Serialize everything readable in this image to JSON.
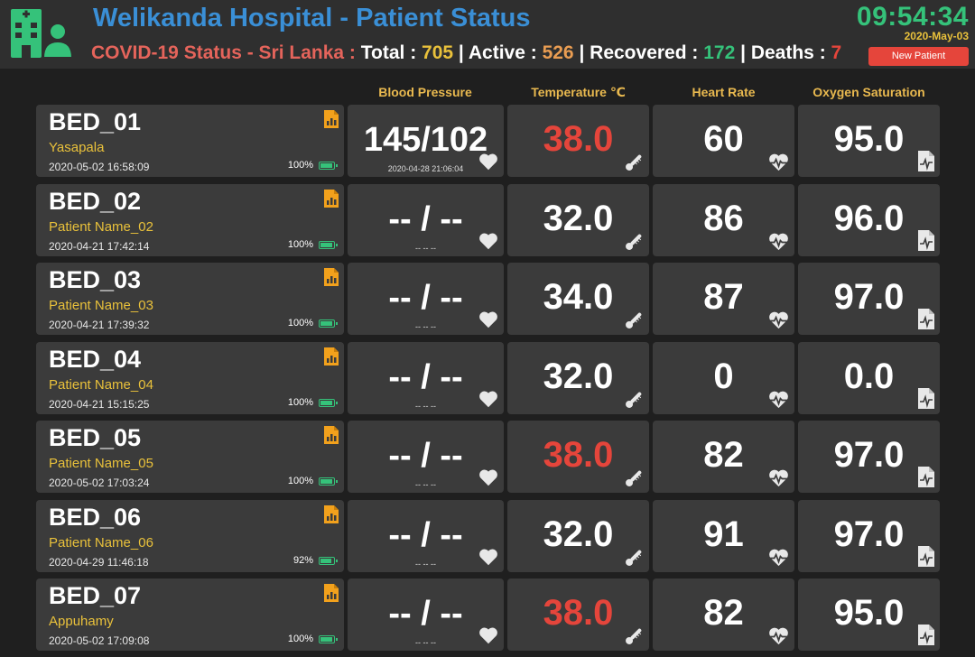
{
  "header": {
    "title": "Welikanda Hospital - Patient Status",
    "covid_label": "COVID-19 Status - Sri Lanka :",
    "total_label": "Total :",
    "total_value": "705",
    "active_label": "| Active :",
    "active_value": "526",
    "recovered_label": "| Recovered :",
    "recovered_value": "172",
    "deaths_label": "| Deaths :",
    "deaths_value": "7",
    "clock": "09:54:34",
    "date": "2020-May-03",
    "new_patient_label": "New Patient"
  },
  "columns": {
    "blood_pressure": "Blood Pressure",
    "temperature": "Temperature ℃",
    "heart_rate": "Heart Rate",
    "oxygen": "Oxygen Saturation"
  },
  "colors": {
    "accent_blue": "#3a8fd6",
    "covid_red": "#e5645b",
    "alert_red": "#e5453b",
    "green": "#35c27a",
    "yellow": "#e9c13b",
    "card_bg": "#3b3b3b"
  },
  "beds": [
    {
      "bed": "BED_01",
      "patient": "Yasapala",
      "time": "2020-05-02 16:58:09",
      "battery": "100%",
      "battery_level": 1.0,
      "bp": "145/102",
      "bp_time": "2020-04-28 21:06:04",
      "temp": "38.0",
      "temp_alert": true,
      "hr": "60",
      "ox": "95.0"
    },
    {
      "bed": "BED_02",
      "patient": "Patient Name_02",
      "time": "2020-04-21 17:42:14",
      "battery": "100%",
      "battery_level": 1.0,
      "bp": "-- / --",
      "bp_time": "-- -- --",
      "temp": "32.0",
      "temp_alert": false,
      "hr": "86",
      "ox": "96.0"
    },
    {
      "bed": "BED_03",
      "patient": "Patient Name_03",
      "time": "2020-04-21 17:39:32",
      "battery": "100%",
      "battery_level": 1.0,
      "bp": "-- / --",
      "bp_time": "-- -- --",
      "temp": "34.0",
      "temp_alert": false,
      "hr": "87",
      "ox": "97.0"
    },
    {
      "bed": "BED_04",
      "patient": "Patient Name_04",
      "time": "2020-04-21 15:15:25",
      "battery": "100%",
      "battery_level": 1.0,
      "bp": "-- / --",
      "bp_time": "-- -- --",
      "temp": "32.0",
      "temp_alert": false,
      "hr": "0",
      "ox": "0.0"
    },
    {
      "bed": "BED_05",
      "patient": "Patient Name_05",
      "time": "2020-05-02 17:03:24",
      "battery": "100%",
      "battery_level": 1.0,
      "bp": "-- / --",
      "bp_time": "-- -- --",
      "temp": "38.0",
      "temp_alert": true,
      "hr": "82",
      "ox": "97.0"
    },
    {
      "bed": "BED_06",
      "patient": "Patient Name_06",
      "time": "2020-04-29 11:46:18",
      "battery": "92%",
      "battery_level": 0.92,
      "bp": "-- / --",
      "bp_time": "-- -- --",
      "temp": "32.0",
      "temp_alert": false,
      "hr": "91",
      "ox": "97.0"
    },
    {
      "bed": "BED_07",
      "patient": "Appuhamy",
      "time": "2020-05-02 17:09:08",
      "battery": "100%",
      "battery_level": 1.0,
      "bp": "-- / --",
      "bp_time": "-- -- --",
      "temp": "38.0",
      "temp_alert": true,
      "hr": "82",
      "ox": "95.0"
    }
  ]
}
